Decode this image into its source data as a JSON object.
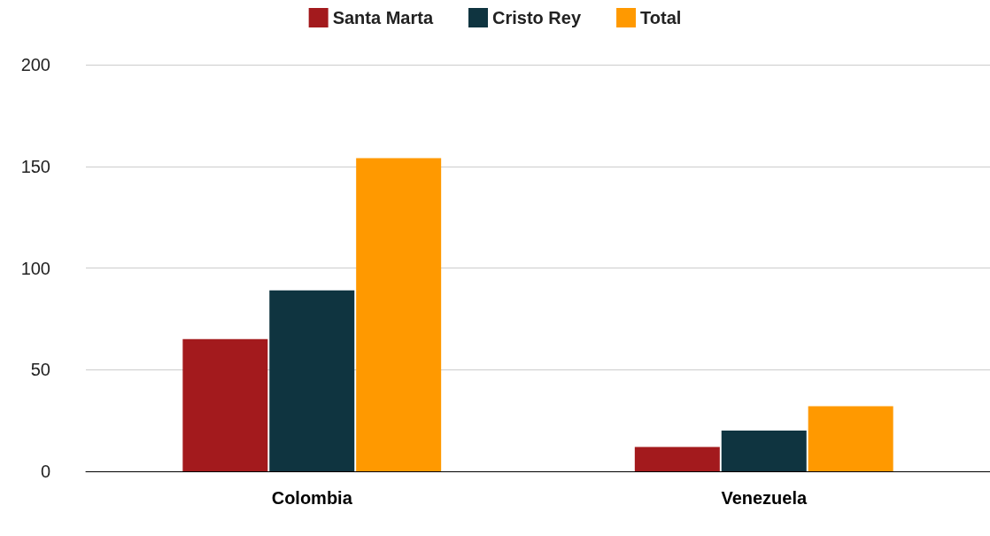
{
  "chart_data": {
    "type": "bar",
    "categories": [
      "Colombia",
      "Venezuela"
    ],
    "series": [
      {
        "name": "Santa Marta",
        "color": "#a31a1d",
        "values": [
          65,
          12
        ]
      },
      {
        "name": "Cristo Rey",
        "color": "#0f3440",
        "values": [
          89,
          20
        ]
      },
      {
        "name": "Total",
        "color": "#ff9900",
        "values": [
          154,
          32
        ]
      }
    ],
    "ylim": [
      0,
      200
    ],
    "yticks": [
      0,
      50,
      100,
      150,
      200
    ],
    "grid": "y",
    "legend": "top"
  }
}
